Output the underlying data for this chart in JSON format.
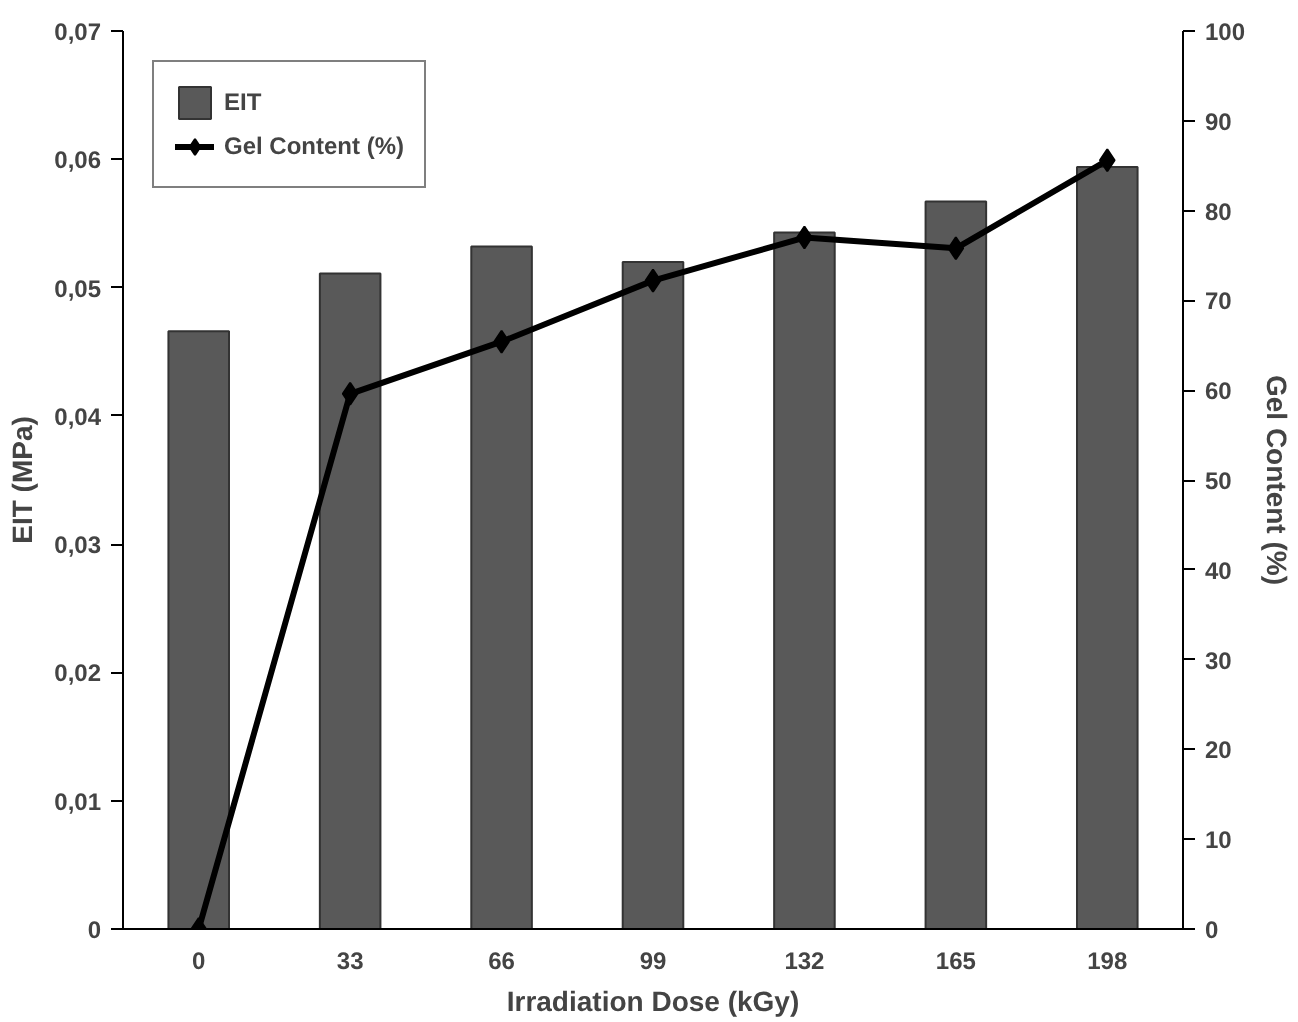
{
  "chart_data": {
    "type": "bar",
    "xlabel": "Irradiation Dose (kGy)",
    "ylabel": "EIT (MPa)",
    "y2label": "Gel Content (%)",
    "categories": [
      "0",
      "33",
      "66",
      "99",
      "132",
      "165",
      "198"
    ],
    "series": [
      {
        "name": "EIT",
        "color": "#595959",
        "values": [
          0.0466,
          0.0511,
          0.0532,
          0.052,
          0.0543,
          0.0567,
          0.0594
        ]
      },
      {
        "name": "Gel Content (%)",
        "type": "line",
        "axis": "y2",
        "color": "#000000",
        "marker": "diamond",
        "values": [
          0,
          59.6,
          65.4,
          72.2,
          77.0,
          75.8,
          85.6
        ]
      }
    ],
    "ylim": [
      0,
      0.07
    ],
    "yticks": [
      0,
      {
        "value": 0.01,
        "label": "0,01"
      },
      {
        "value": 0.02,
        "label": "0,02"
      },
      {
        "value": 0.03,
        "label": "0,03"
      },
      {
        "value": 0.04,
        "label": "0,04"
      },
      {
        "value": 0.05,
        "label": "0,05"
      },
      {
        "value": 0.06,
        "label": "0,06"
      },
      {
        "value": 0.07,
        "label": "0,07"
      }
    ],
    "y2lim": [
      0,
      100
    ],
    "y2ticks": [
      0,
      10,
      20,
      30,
      40,
      50,
      60,
      70,
      80,
      90,
      100
    ],
    "legend": "top left",
    "grid": false
  }
}
